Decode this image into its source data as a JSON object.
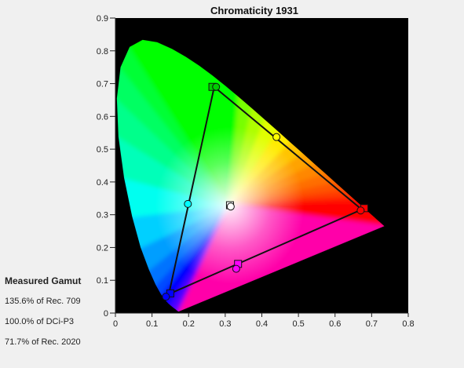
{
  "chart_data": {
    "type": "scatter",
    "title": "Chromaticity 1931",
    "xlabel": "",
    "ylabel": "",
    "xlim": [
      0,
      0.8
    ],
    "ylim": [
      0,
      0.9
    ],
    "x_ticks": [
      "0",
      "0.1",
      "0.2",
      "0.3",
      "0.4",
      "0.5",
      "0.6",
      "0.7",
      "0.8"
    ],
    "y_ticks": [
      "0",
      "0.1",
      "0.2",
      "0.3",
      "0.4",
      "0.5",
      "0.6",
      "0.7",
      "0.8",
      "0.9"
    ],
    "grid": false,
    "background": "#000000",
    "locus": [
      [
        0.1741,
        0.005
      ],
      [
        0.1738,
        0.0049
      ],
      [
        0.1736,
        0.0049
      ],
      [
        0.1733,
        0.0048
      ],
      [
        0.173,
        0.0048
      ],
      [
        0.1726,
        0.0048
      ],
      [
        0.1721,
        0.0048
      ],
      [
        0.1714,
        0.0051
      ],
      [
        0.1703,
        0.0058
      ],
      [
        0.1689,
        0.0069
      ],
      [
        0.1669,
        0.0086
      ],
      [
        0.1644,
        0.0109
      ],
      [
        0.1611,
        0.0138
      ],
      [
        0.1566,
        0.0177
      ],
      [
        0.151,
        0.0227
      ],
      [
        0.144,
        0.0297
      ],
      [
        0.1355,
        0.0399
      ],
      [
        0.1241,
        0.0578
      ],
      [
        0.1096,
        0.0868
      ],
      [
        0.0913,
        0.1327
      ],
      [
        0.0687,
        0.2007
      ],
      [
        0.0454,
        0.295
      ],
      [
        0.0235,
        0.4127
      ],
      [
        0.0082,
        0.5384
      ],
      [
        0.0039,
        0.6548
      ],
      [
        0.0139,
        0.7502
      ],
      [
        0.0389,
        0.812
      ],
      [
        0.0743,
        0.8338
      ],
      [
        0.1142,
        0.8262
      ],
      [
        0.1547,
        0.8059
      ],
      [
        0.1929,
        0.7816
      ],
      [
        0.2296,
        0.7543
      ],
      [
        0.2658,
        0.7243
      ],
      [
        0.3016,
        0.6923
      ],
      [
        0.3373,
        0.6589
      ],
      [
        0.3731,
        0.6245
      ],
      [
        0.4087,
        0.5896
      ],
      [
        0.4441,
        0.5547
      ],
      [
        0.4788,
        0.5202
      ],
      [
        0.5125,
        0.4866
      ],
      [
        0.5448,
        0.4544
      ],
      [
        0.5752,
        0.4242
      ],
      [
        0.6029,
        0.3965
      ],
      [
        0.627,
        0.3725
      ],
      [
        0.6482,
        0.3514
      ],
      [
        0.6658,
        0.334
      ],
      [
        0.6801,
        0.3197
      ],
      [
        0.6915,
        0.3083
      ],
      [
        0.7006,
        0.2993
      ],
      [
        0.7079,
        0.292
      ],
      [
        0.714,
        0.2859
      ],
      [
        0.719,
        0.2809
      ],
      [
        0.723,
        0.277
      ],
      [
        0.726,
        0.274
      ],
      [
        0.7283,
        0.2717
      ],
      [
        0.73,
        0.27
      ],
      [
        0.7311,
        0.2689
      ],
      [
        0.732,
        0.268
      ],
      [
        0.7327,
        0.2673
      ],
      [
        0.7334,
        0.2666
      ],
      [
        0.734,
        0.266
      ],
      [
        0.7344,
        0.2656
      ],
      [
        0.7346,
        0.2654
      ],
      [
        0.7347,
        0.2653
      ]
    ],
    "series": [
      {
        "marker": "square",
        "points": [
          {
            "color": "#00cc00",
            "x": 0.265,
            "y": 0.69
          },
          {
            "color": "#ff0000",
            "x": 0.68,
            "y": 0.32
          },
          {
            "color": "#0000ff",
            "x": 0.15,
            "y": 0.06
          },
          {
            "color": "#ff00ff",
            "x": 0.335,
            "y": 0.15
          },
          {
            "color": "#ffffff",
            "x": 0.313,
            "y": 0.329
          }
        ]
      },
      {
        "marker": "circle",
        "points": [
          {
            "color": "#00cc00",
            "x": 0.275,
            "y": 0.69
          },
          {
            "color": "#ff0000",
            "x": 0.67,
            "y": 0.313
          },
          {
            "color": "#0000ff",
            "x": 0.138,
            "y": 0.05
          },
          {
            "color": "#ff00ff",
            "x": 0.33,
            "y": 0.135
          },
          {
            "color": "#00ffff",
            "x": 0.198,
            "y": 0.333
          },
          {
            "color": "#ffff00",
            "x": 0.44,
            "y": 0.537
          },
          {
            "color": "#ffffff",
            "x": 0.315,
            "y": 0.325
          }
        ]
      }
    ],
    "gamut_triangle": [
      [
        0.27,
        0.69
      ],
      [
        0.673,
        0.316
      ],
      [
        0.146,
        0.058
      ]
    ],
    "gamut_line_color": "#111111"
  },
  "gamut": {
    "heading": "Measured Gamut",
    "lines": [
      "135.6% of Rec. 709",
      "100.0% of DCi-P3",
      "71.7% of Rec. 2020"
    ]
  }
}
